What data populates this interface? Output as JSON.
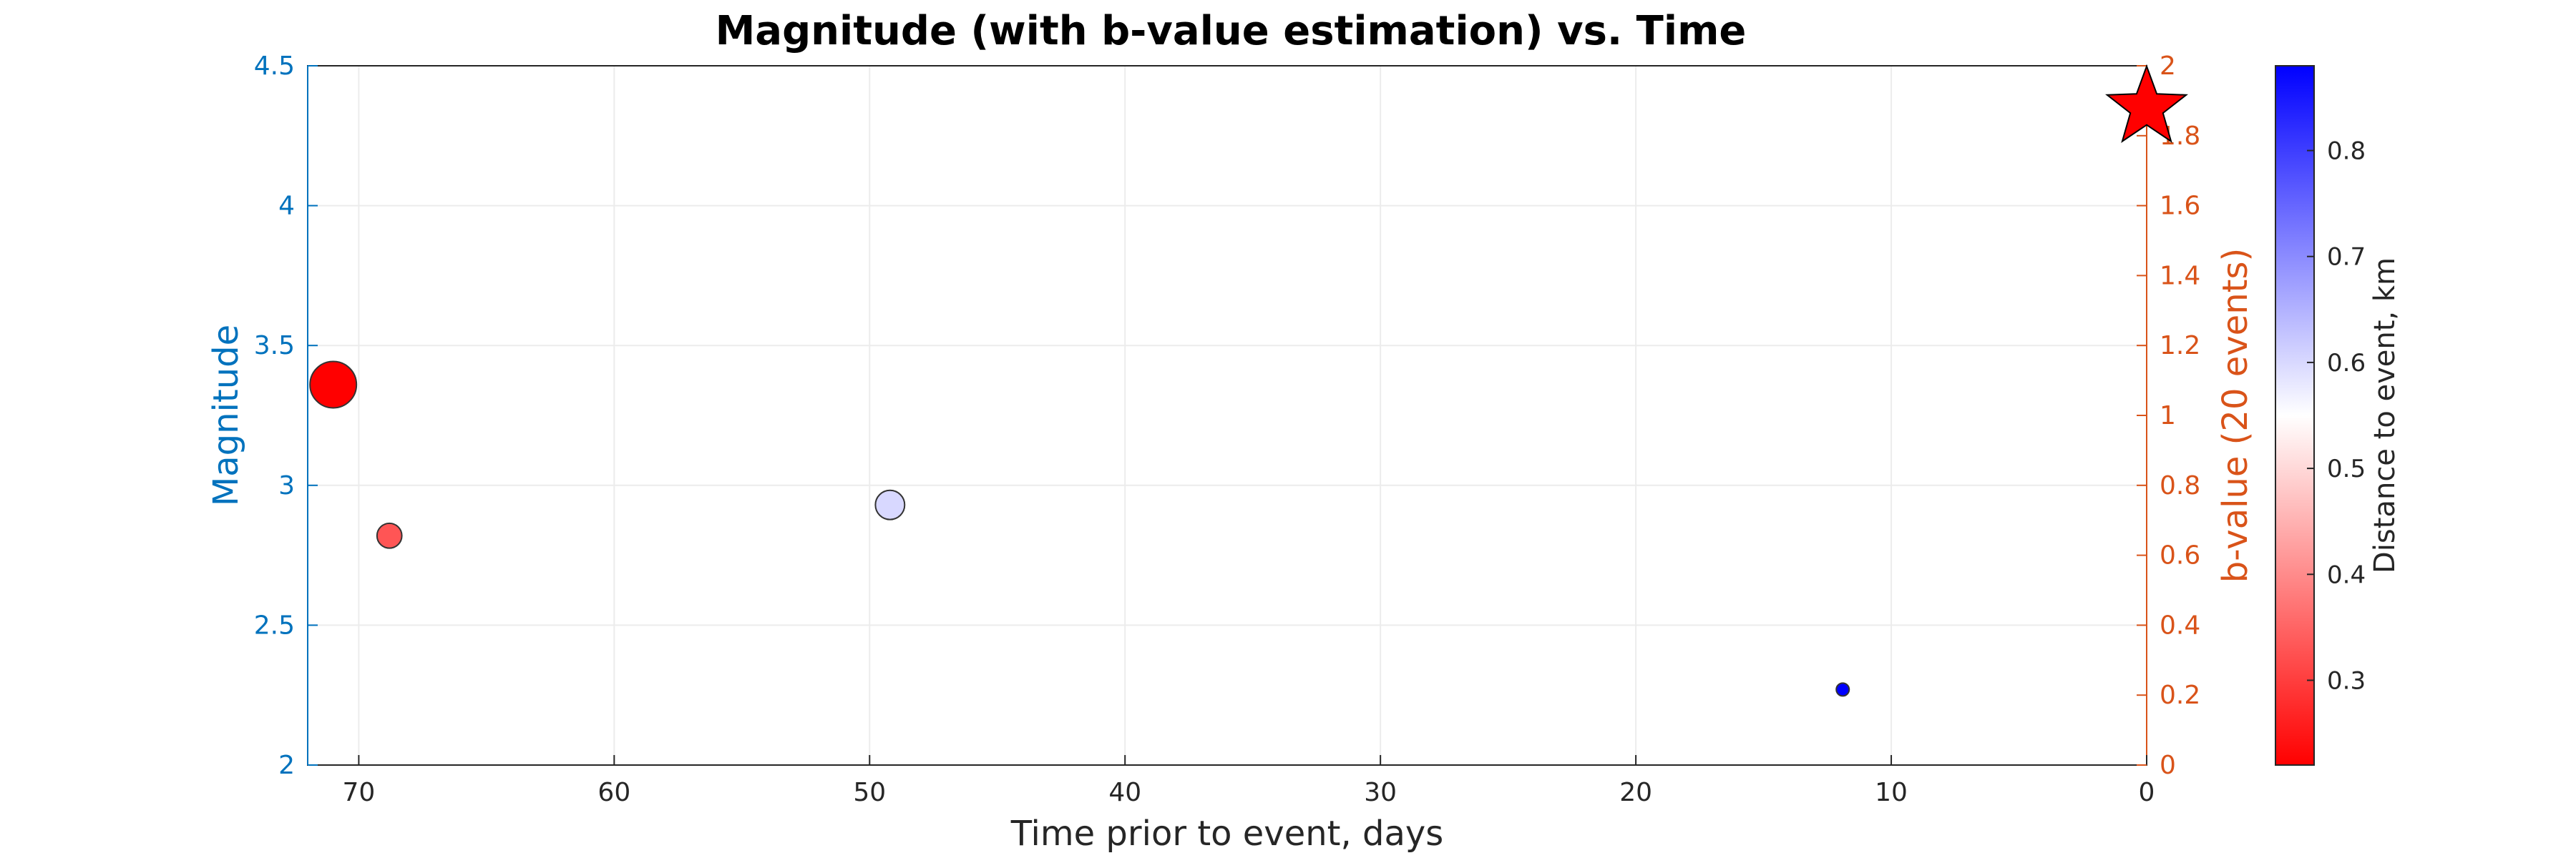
{
  "chart_data": {
    "type": "scatter",
    "title": "Magnitude (with b-value estimation) vs. Time",
    "xlabel": "Time prior to event, days",
    "ylabel_left": "Magnitude",
    "ylabel_right": "b-value (20 events)",
    "colorbar_label": "Distance to event, km",
    "x_reversed": true,
    "xlim": [
      0,
      72
    ],
    "ylim_left": [
      2,
      4.5
    ],
    "ylim_right": [
      0,
      2
    ],
    "clim": [
      0.22,
      0.88
    ],
    "grid": true,
    "x_ticks": [
      "70",
      "60",
      "50",
      "40",
      "30",
      "20",
      "10",
      "0"
    ],
    "y_ticks_left": [
      "2",
      "2.5",
      "3",
      "3.5",
      "4",
      "4.5"
    ],
    "y_ticks_right": [
      "0",
      "0.2",
      "0.4",
      "0.6",
      "0.8",
      "1",
      "1.2",
      "1.4",
      "1.6",
      "1.8",
      "2"
    ],
    "colorbar_ticks": [
      "0.3",
      "0.4",
      "0.5",
      "0.6",
      "0.7",
      "0.8"
    ],
    "colors": {
      "left_axis": "#0072bd",
      "right_axis": "#d95319",
      "colormap_low": "#ff0000",
      "colormap_mid": "#ffffff",
      "colormap_high": "#0000ff",
      "mainshock": "#ff0000"
    },
    "events": [
      {
        "x": 71,
        "magnitude": 3.36,
        "distance_km": 0.22
      },
      {
        "x": 68.8,
        "magnitude": 2.82,
        "distance_km": 0.33
      },
      {
        "x": 49.2,
        "magnitude": 2.93,
        "distance_km": 0.6
      },
      {
        "x": 11.9,
        "magnitude": 2.27,
        "distance_km": 0.88
      }
    ],
    "mainshock": {
      "x": 0,
      "magnitude": 4.35,
      "marker": "star"
    }
  }
}
